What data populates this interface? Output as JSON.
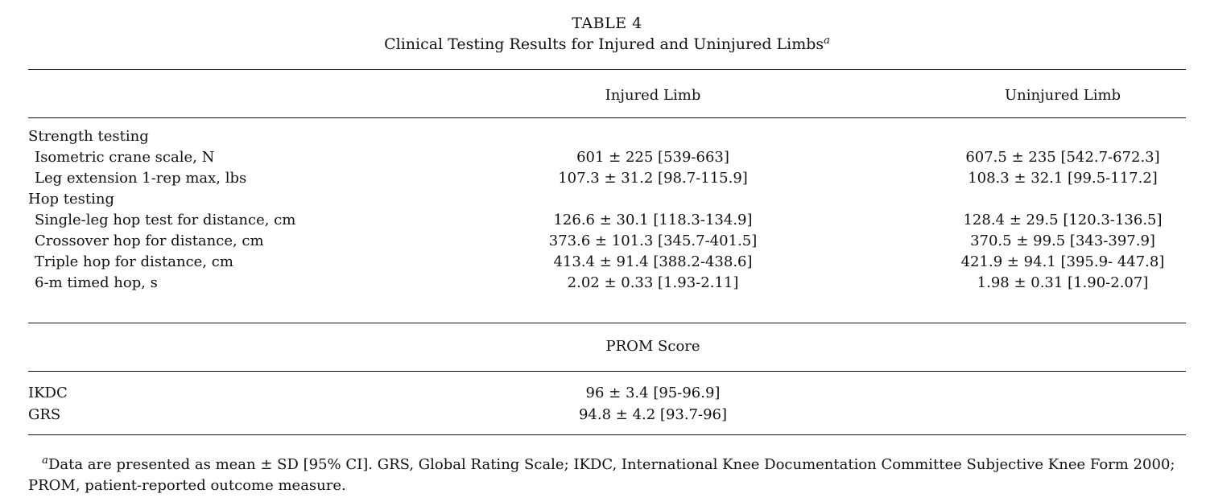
{
  "table": {
    "label": "TABLE 4",
    "title": "Clinical Testing Results for Injured and Uninjured Limbs",
    "title_footnote_marker": "a",
    "headers": {
      "injured": "Injured Limb",
      "uninjured": "Uninjured Limb"
    },
    "sections": [
      {
        "heading": "Strength testing",
        "rows": [
          {
            "label": "Isometric crane scale, N",
            "injured": "601 ± 225 [539-663]",
            "uninjured": "607.5 ± 235 [542.7-672.3]"
          },
          {
            "label": "Leg extension 1-rep max, lbs",
            "injured": "107.3 ± 31.2 [98.7-115.9]",
            "uninjured": "108.3 ± 32.1 [99.5-117.2]"
          }
        ]
      },
      {
        "heading": "Hop testing",
        "rows": [
          {
            "label": "Single-leg hop test for distance, cm",
            "injured": "126.6 ± 30.1 [118.3-134.9]",
            "uninjured": "128.4 ± 29.5 [120.3-136.5]"
          },
          {
            "label": "Crossover hop for distance, cm",
            "injured": "373.6 ± 101.3 [345.7-401.5]",
            "uninjured": "370.5 ± 99.5 [343-397.9]"
          },
          {
            "label": "Triple hop for distance, cm",
            "injured": "413.4 ± 91.4 [388.2-438.6]",
            "uninjured": "421.9 ± 94.1 [395.9- 447.8]"
          },
          {
            "label": "6-m timed hop, s",
            "injured": "2.02 ± 0.33 [1.93-2.11]",
            "uninjured": "1.98 ± 0.31 [1.90-2.07]"
          }
        ]
      }
    ],
    "prom_header": "PROM Score",
    "prom_rows": [
      {
        "label": "IKDC",
        "value": "96 ± 3.4 [95-96.9]"
      },
      {
        "label": "GRS",
        "value": "94.8 ± 4.2 [93.7-96]"
      }
    ],
    "footnote": {
      "marker": "a",
      "text": "Data are presented as mean ± SD [95% CI]. GRS, Global Rating Scale; IKDC, International Knee Documentation Committee Subjective Knee Form 2000; PROM, patient-reported outcome measure."
    }
  }
}
